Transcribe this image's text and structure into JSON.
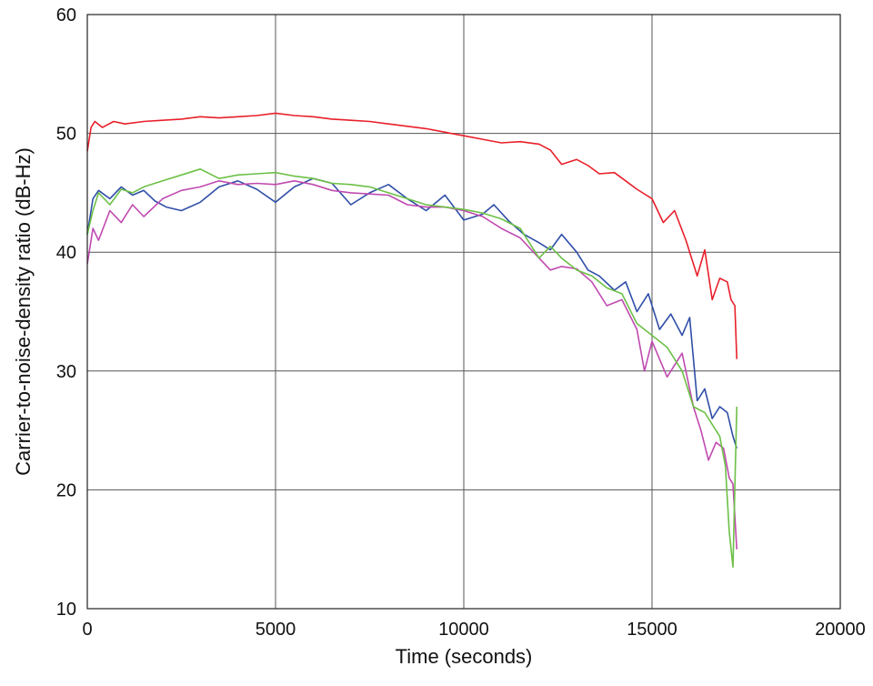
{
  "chart_data": {
    "type": "line",
    "title": "",
    "xlabel": "Time (seconds)",
    "ylabel": "Carrier-to-noise-density ratio (dB-Hz)",
    "xlim": [
      0,
      20000
    ],
    "ylim": [
      10,
      60
    ],
    "xticks": [
      0,
      5000,
      10000,
      15000,
      20000
    ],
    "yticks": [
      10,
      20,
      30,
      40,
      50,
      60
    ],
    "grid": true,
    "legend": "none",
    "series": [
      {
        "color": "#e8202a",
        "x": [
          0,
          100,
          200,
          400,
          700,
          1000,
          1500,
          2000,
          2500,
          3000,
          3500,
          4000,
          4500,
          5000,
          5500,
          6000,
          6500,
          7000,
          7500,
          8000,
          8500,
          9000,
          9500,
          10000,
          10500,
          11000,
          11500,
          12000,
          12300,
          12600,
          13000,
          13300,
          13600,
          14000,
          14300,
          14600,
          15000,
          15300,
          15600,
          15900,
          16200,
          16400,
          16600,
          16800,
          17000,
          17100,
          17200,
          17250
        ],
        "y": [
          48.5,
          50.5,
          51,
          50.5,
          51,
          50.8,
          51,
          51.1,
          51.2,
          51.4,
          51.3,
          51.4,
          51.5,
          51.7,
          51.5,
          51.4,
          51.2,
          51.1,
          51.0,
          50.8,
          50.6,
          50.4,
          50.1,
          49.8,
          49.5,
          49.2,
          49.3,
          49.1,
          48.6,
          47.4,
          47.8,
          47.3,
          46.6,
          46.7,
          46.0,
          45.3,
          44.5,
          42.5,
          43.5,
          41.0,
          38.0,
          40.2,
          36.0,
          37.8,
          37.5,
          36.0,
          35.5,
          31.0
        ]
      },
      {
        "color": "#2f4ea8",
        "x": [
          0,
          150,
          300,
          600,
          900,
          1200,
          1500,
          1800,
          2100,
          2500,
          3000,
          3500,
          4000,
          4500,
          5000,
          5500,
          6000,
          6500,
          7000,
          7500,
          8000,
          8500,
          9000,
          9500,
          10000,
          10500,
          10800,
          11200,
          11600,
          12000,
          12300,
          12600,
          13000,
          13300,
          13600,
          14000,
          14300,
          14600,
          14900,
          15200,
          15500,
          15800,
          16000,
          16200,
          16400,
          16600,
          16800,
          17000,
          17150,
          17250
        ],
        "y": [
          41.5,
          44.5,
          45.2,
          44.5,
          45.5,
          44.8,
          45.2,
          44.3,
          43.8,
          43.5,
          44.2,
          45.5,
          46.0,
          45.3,
          44.2,
          45.5,
          46.2,
          45.8,
          44.0,
          45.0,
          45.7,
          44.5,
          43.5,
          44.8,
          42.7,
          43.2,
          44.0,
          42.6,
          41.5,
          40.8,
          40.2,
          41.5,
          40.0,
          38.5,
          38.0,
          36.8,
          37.5,
          35.0,
          36.5,
          33.5,
          34.8,
          33.0,
          34.5,
          27.5,
          28.5,
          26.0,
          27.0,
          26.5,
          24.5,
          23.5
        ]
      },
      {
        "color": "#c04ab0",
        "x": [
          0,
          150,
          300,
          600,
          900,
          1200,
          1500,
          2000,
          2500,
          3000,
          3500,
          4000,
          4500,
          5000,
          5500,
          6000,
          6500,
          7000,
          7500,
          8000,
          8500,
          9000,
          9500,
          10000,
          10500,
          11000,
          11500,
          12000,
          12300,
          12600,
          13000,
          13400,
          13800,
          14200,
          14600,
          14800,
          15000,
          15400,
          15800,
          16100,
          16300,
          16500,
          16700,
          16900,
          17050,
          17150,
          17250
        ],
        "y": [
          39.0,
          42.0,
          41.0,
          43.5,
          42.5,
          44.0,
          43.0,
          44.5,
          45.2,
          45.5,
          46.0,
          45.7,
          45.8,
          45.7,
          46.0,
          45.7,
          45.2,
          45.0,
          44.9,
          44.8,
          44.0,
          43.8,
          43.8,
          43.5,
          43.0,
          42.0,
          41.2,
          39.5,
          38.5,
          38.8,
          38.6,
          37.5,
          35.5,
          36.0,
          33.5,
          30.0,
          32.5,
          29.5,
          31.5,
          27.0,
          25.0,
          22.5,
          24.0,
          23.5,
          21.0,
          20.5,
          15.0
        ]
      },
      {
        "color": "#6cc046",
        "x": [
          0,
          150,
          300,
          600,
          900,
          1200,
          1500,
          2000,
          2500,
          3000,
          3500,
          4000,
          4500,
          5000,
          5500,
          6000,
          6500,
          7000,
          7500,
          8000,
          8500,
          9000,
          9500,
          10000,
          10500,
          11000,
          11500,
          12000,
          12300,
          12600,
          13000,
          13400,
          13800,
          14200,
          14600,
          15000,
          15400,
          15800,
          16100,
          16400,
          16600,
          16800,
          16950,
          17050,
          17150,
          17250
        ],
        "y": [
          41.5,
          43.5,
          45.0,
          44.0,
          45.3,
          45.0,
          45.5,
          46.0,
          46.5,
          47.0,
          46.2,
          46.5,
          46.6,
          46.7,
          46.4,
          46.2,
          45.8,
          45.7,
          45.5,
          45.0,
          44.5,
          44.0,
          43.8,
          43.6,
          43.3,
          42.8,
          42.0,
          39.5,
          40.5,
          39.5,
          38.5,
          38.0,
          37.0,
          36.5,
          34.0,
          33.0,
          32.0,
          30.0,
          27.0,
          26.5,
          25.5,
          24.5,
          22.0,
          16.5,
          13.5,
          27.0
        ]
      }
    ]
  }
}
